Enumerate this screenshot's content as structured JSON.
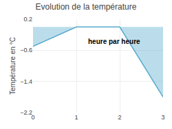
{
  "chart_data": {
    "type": "area",
    "title": "Evolution de la température",
    "ylabel": "Température en °C",
    "x": [
      0,
      1,
      2,
      3
    ],
    "values": [
      -0.5,
      0.0,
      0.0,
      -1.8
    ],
    "color": "#55aacc",
    "xlim": [
      0,
      3
    ],
    "xticks": [
      0,
      1,
      2,
      3
    ],
    "ylim": [
      -2.2,
      0.2
    ],
    "yticks": [
      0.2,
      -0.6,
      -1.4,
      -2.2
    ],
    "grid": true,
    "annotations": [
      {
        "text": "heure par heure",
        "x": 2.5,
        "y": -0.38
      }
    ]
  }
}
